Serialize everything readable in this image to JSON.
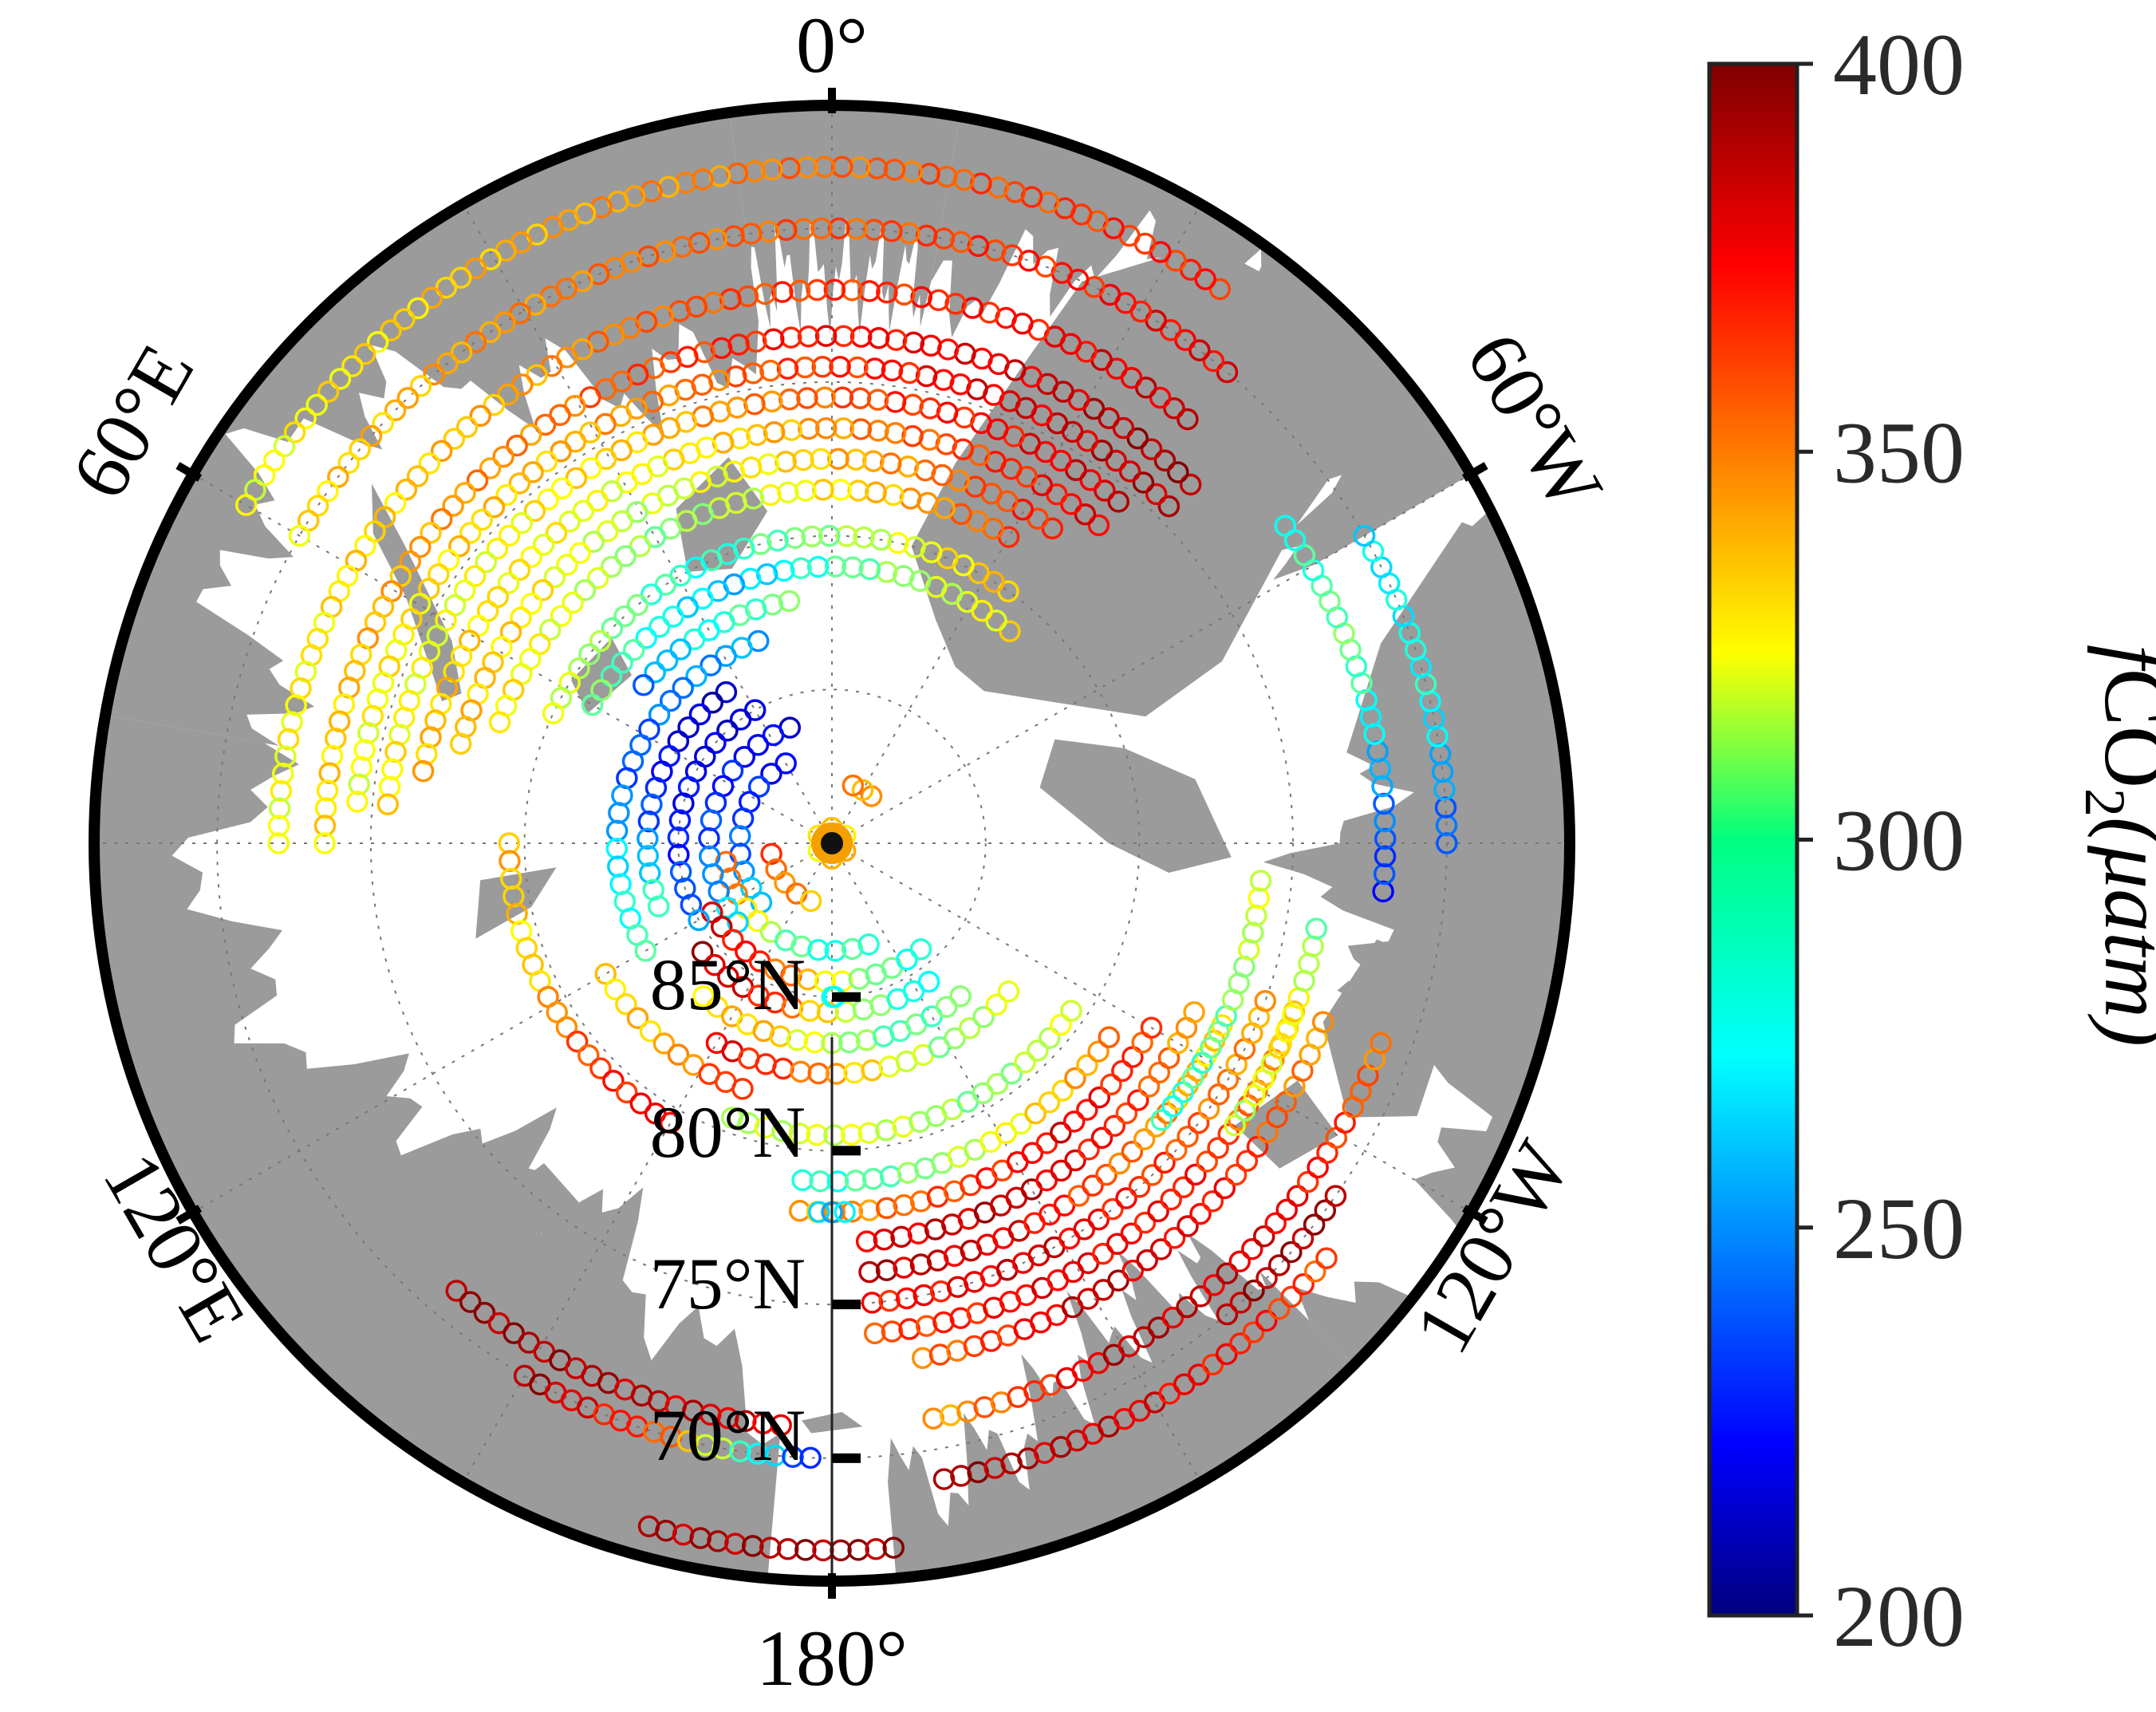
{
  "map": {
    "projection": "north-polar-stereographic",
    "longitude_labels": [
      "0°",
      "60°W",
      "120°W",
      "180°",
      "120°E",
      "60°E"
    ],
    "latitude_labels": [
      "85°N",
      "80°N",
      "75°N",
      "70°N"
    ],
    "latitude_circles": [
      85,
      80,
      75,
      70
    ],
    "outer_latitude": 66,
    "land_color": "#9b9b9b",
    "ocean_color": "#ffffff",
    "graticule": true
  },
  "colorbar": {
    "label_prefix": "f",
    "label_main": "CO",
    "label_sub": "2",
    "label_unit": "(μatm)",
    "ticks": [
      "200",
      "250",
      "300",
      "350",
      "400"
    ],
    "min": 200,
    "max": 400,
    "colormap": "jet"
  },
  "chart_data": {
    "type": "scatter",
    "title": "",
    "value_name": "fCO2",
    "value_unit": "μatm",
    "value_range": [
      200,
      400
    ],
    "marker": "open-circle",
    "tracks": [
      {
        "lat": 89.5,
        "lon_start": 0,
        "lon_end": 360,
        "values": [
          320,
          330,
          340,
          330
        ]
      },
      {
        "lat": 88,
        "lon_start": 100,
        "lon_end": 160,
        "values": [
          360,
          350,
          340
        ]
      },
      {
        "lat": 88,
        "lon_start": -40,
        "lon_end": -20,
        "values": [
          340,
          350
        ]
      },
      {
        "lat": 87,
        "lon_start": 30,
        "lon_end": 130,
        "values": [
          225,
          230,
          240,
          250,
          270
        ]
      },
      {
        "lat": 86.5,
        "lon_start": 100,
        "lon_end": 200,
        "values": [
          360,
          340,
          300,
          280,
          290
        ]
      },
      {
        "lat": 86,
        "lon_start": 20,
        "lon_end": 130,
        "values": [
          220,
          225,
          235,
          250,
          270
        ]
      },
      {
        "lat": 85.5,
        "lon_start": 120,
        "lon_end": 220,
        "values": [
          385,
          370,
          340,
          300,
          280
        ]
      },
      {
        "lat": 85,
        "lon_start": 30,
        "lon_end": 120,
        "values": [
          215,
          220,
          230,
          250
        ]
      },
      {
        "lat": 84.5,
        "lon_start": 130,
        "lon_end": 215,
        "values": [
          390,
          380,
          340,
          300,
          270
        ]
      },
      {
        "lat": 84,
        "lon_start": 35,
        "lon_end": 110,
        "values": [
          210,
          220,
          245,
          290
        ]
      },
      {
        "lat": 83.5,
        "lon_start": 140,
        "lon_end": 220,
        "values": [
          330,
          340,
          310,
          290,
          300
        ]
      },
      {
        "lat": 83,
        "lon_start": 20,
        "lon_end": 120,
        "values": [
          260,
          250,
          240,
          270,
          290
        ]
      },
      {
        "lat": 82.5,
        "lon_start": 150,
        "lon_end": 230,
        "values": [
          380,
          360,
          330,
          300,
          320
        ]
      },
      {
        "lat": 82,
        "lon_start": 10,
        "lon_end": 50,
        "values": [
          300,
          280,
          250
        ]
      },
      {
        "lat": 81.5,
        "lon_start": 120,
        "lon_end": 160,
        "values": [
          330,
          340,
          370
        ]
      },
      {
        "lat": 81,
        "lon_start": -40,
        "lon_end": 60,
        "values": [
          330,
          310,
          290,
          260,
          280,
          300
        ]
      },
      {
        "lat": 80.5,
        "lon_start": 160,
        "lon_end": 235,
        "values": [
          310,
          320,
          300,
          320
        ]
      },
      {
        "lat": 80,
        "lon_start": -35,
        "lon_end": 65,
        "values": [
          340,
          320,
          300,
          280,
          300,
          320
        ]
      },
      {
        "lat": 79.5,
        "lon_start": 90,
        "lon_end": 150,
        "values": [
          340,
          330,
          360,
          380
        ]
      },
      {
        "lat": 79,
        "lon_start": 175,
        "lon_end": 235,
        "values": [
          280,
          300,
          330,
          350
        ]
      },
      {
        "lat": 78.5,
        "lon_start": -30,
        "lon_end": 70,
        "values": [
          360,
          340,
          320,
          300,
          320,
          330
        ]
      },
      {
        "lat": 78,
        "lon_start": 175,
        "lon_end": 240,
        "values": [
          340,
          360,
          380,
          360
        ]
      },
      {
        "lat": 77.5,
        "lon_start": -35,
        "lon_end": 75,
        "values": [
          370,
          350,
          330,
          310,
          330,
          340
        ]
      },
      {
        "lat": 77,
        "lon_start": 185,
        "lon_end": 245,
        "values": [
          380,
          390,
          370,
          340
        ]
      },
      {
        "lat": 76.5,
        "lon_start": -40,
        "lon_end": 80,
        "values": [
          380,
          360,
          340,
          320,
          330,
          340
        ]
      },
      {
        "lat": 76,
        "lon_start": 185,
        "lon_end": 245,
        "values": [
          390,
          380,
          350,
          330
        ]
      },
      {
        "lat": 75.5,
        "lon_start": -40,
        "lon_end": 85,
        "values": [
          385,
          370,
          350,
          330,
          320,
          330
        ]
      },
      {
        "lat": 75,
        "lon_start": 185,
        "lon_end": 250,
        "values": [
          370,
          385,
          360,
          340
        ]
      },
      {
        "lat": 74.5,
        "lon_start": -45,
        "lon_end": 85,
        "values": [
          390,
          380,
          360,
          340,
          330,
          320
        ]
      },
      {
        "lat": 74,
        "lon_start": 185,
        "lon_end": 250,
        "values": [
          360,
          380,
          370,
          330
        ]
      },
      {
        "lat": 73.5,
        "lon_start": -45,
        "lon_end": 90,
        "values": [
          395,
          380,
          370,
          350,
          340,
          330
        ]
      },
      {
        "lat": 73,
        "lon_start": 190,
        "lon_end": 250,
        "values": [
          350,
          390,
          370,
          340
        ]
      },
      {
        "lat": 72,
        "lon_start": -40,
        "lon_end": 90,
        "values": [
          385,
          370,
          360,
          340,
          330,
          320
        ]
      },
      {
        "lat": 71,
        "lon_start": 190,
        "lon_end": 250,
        "values": [
          340,
          390,
          380,
          350
        ]
      },
      {
        "lat": 70,
        "lon_start": -40,
        "lon_end": 60,
        "values": [
          380,
          360,
          350,
          330
        ]
      },
      {
        "lat": 69,
        "lon_start": 190,
        "lon_end": 230,
        "values": [
          395,
          380,
          360
        ]
      },
      {
        "lat": 68,
        "lon_start": -35,
        "lon_end": 60,
        "values": [
          370,
          355,
          340,
          320
        ]
      },
      {
        "lat": 72,
        "lon_start": -95,
        "lon_end": -55,
        "values": [
          230,
          260,
          300,
          280
        ]
      },
      {
        "lat": 70,
        "lon_start": -90,
        "lon_end": -60,
        "values": [
          240,
          280,
          270
        ]
      },
      {
        "lat": 76,
        "lon_start": -130,
        "lon_end": -95,
        "values": [
          280,
          300,
          320
        ]
      },
      {
        "lat": 74,
        "lon_start": -125,
        "lon_end": -100,
        "values": [
          310,
          330,
          300
        ]
      },
      {
        "lat": 70,
        "lon_start": -140,
        "lon_end": -125,
        "values": [
          390,
          395
        ]
      },
      {
        "lat": 71,
        "lon_start": 140,
        "lon_end": 175,
        "values": [
          395,
          390,
          380
        ]
      },
      {
        "lat": 70,
        "lon_start": 150,
        "lon_end": 178,
        "values": [
          395,
          360,
          230
        ]
      },
      {
        "lat": 67,
        "lon_start": 165,
        "lon_end": 185,
        "values": [
          390,
          395
        ]
      },
      {
        "lat": 85,
        "lon_start": 180,
        "lon_end": 181,
        "values": [
          280
        ]
      },
      {
        "lat": 78,
        "lon_start": 178,
        "lon_end": 182,
        "values": [
          260,
          270
        ]
      }
    ]
  }
}
